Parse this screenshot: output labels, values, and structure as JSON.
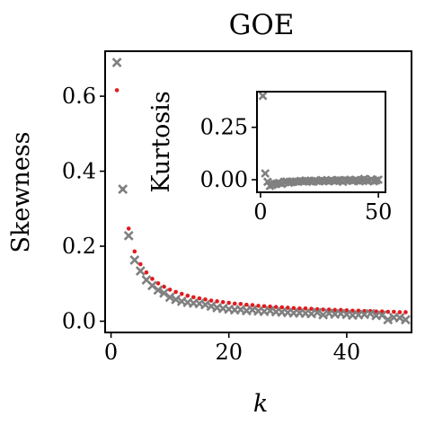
{
  "chart_data": [
    {
      "id": "main",
      "type": "scatter",
      "title": "GOE",
      "xlabel": "k",
      "ylabel": "Skewness",
      "xlim": [
        -1,
        51
      ],
      "ylim": [
        -0.03,
        0.72
      ],
      "xticks": [
        0,
        20,
        40
      ],
      "yticks": [
        0.0,
        0.2,
        0.4,
        0.6
      ],
      "xtick_labels": [
        "0",
        "20",
        "40"
      ],
      "ytick_labels": [
        "0.0",
        "0.2",
        "0.4",
        "0.6"
      ],
      "series": [
        {
          "marker": "dot",
          "color": "#e31a1c",
          "x": [
            1,
            2,
            3,
            4,
            5,
            6,
            7,
            8,
            9,
            10,
            11,
            12,
            13,
            14,
            15,
            16,
            17,
            18,
            19,
            20,
            21,
            22,
            23,
            24,
            25,
            26,
            27,
            28,
            29,
            30,
            31,
            32,
            33,
            34,
            35,
            36,
            37,
            38,
            39,
            40,
            41,
            42,
            43,
            44,
            45,
            46,
            47,
            48,
            49,
            50
          ],
          "y": [
            0.616,
            0.352,
            0.247,
            0.186,
            0.152,
            0.13,
            0.113,
            0.101,
            0.092,
            0.084,
            0.078,
            0.073,
            0.068,
            0.064,
            0.061,
            0.058,
            0.055,
            0.053,
            0.051,
            0.049,
            0.047,
            0.046,
            0.044,
            0.043,
            0.041,
            0.04,
            0.039,
            0.038,
            0.037,
            0.036,
            0.035,
            0.034,
            0.034,
            0.033,
            0.032,
            0.031,
            0.031,
            0.03,
            0.03,
            0.029,
            0.028,
            0.028,
            0.027,
            0.027,
            0.026,
            0.026,
            0.025,
            0.025,
            0.024,
            0.024
          ]
        },
        {
          "marker": "x",
          "color": "#808080",
          "x": [
            1,
            2,
            3,
            4,
            5,
            6,
            7,
            8,
            9,
            10,
            11,
            12,
            13,
            14,
            15,
            16,
            17,
            18,
            19,
            20,
            21,
            22,
            23,
            24,
            25,
            26,
            27,
            28,
            29,
            30,
            31,
            32,
            33,
            34,
            35,
            36,
            37,
            38,
            39,
            40,
            41,
            42,
            43,
            44,
            45,
            46,
            47,
            48,
            49,
            50
          ],
          "y": [
            0.69,
            0.352,
            0.228,
            0.163,
            0.134,
            0.11,
            0.095,
            0.083,
            0.075,
            0.064,
            0.058,
            0.053,
            0.05,
            0.048,
            0.047,
            0.044,
            0.04,
            0.036,
            0.034,
            0.032,
            0.03,
            0.031,
            0.028,
            0.03,
            0.027,
            0.026,
            0.028,
            0.025,
            0.024,
            0.023,
            0.022,
            0.022,
            0.021,
            0.02,
            0.023,
            0.017,
            0.021,
            0.019,
            0.02,
            0.018,
            0.016,
            0.017,
            0.018,
            0.02,
            0.015,
            0.016,
            0.004,
            0.01,
            0.009,
            0.004
          ]
        }
      ]
    },
    {
      "id": "inset",
      "type": "scatter",
      "title": "",
      "xlabel": "",
      "ylabel": "Kurtosis",
      "xlim": [
        -1.5,
        53
      ],
      "ylim": [
        -0.06,
        0.42
      ],
      "xticks": [
        0,
        50
      ],
      "yticks": [
        0.0,
        0.25
      ],
      "xtick_labels": [
        "0",
        "50"
      ],
      "ytick_labels": [
        "0.00",
        "0.25"
      ],
      "series": [
        {
          "marker": "x",
          "color": "#808080",
          "x": [
            1,
            2,
            3,
            4,
            5,
            6,
            7,
            8,
            9,
            10,
            11,
            12,
            13,
            14,
            15,
            16,
            17,
            18,
            19,
            20,
            21,
            22,
            23,
            24,
            25,
            26,
            27,
            28,
            29,
            30,
            31,
            32,
            33,
            34,
            35,
            36,
            37,
            38,
            39,
            40,
            41,
            42,
            43,
            44,
            45,
            46,
            47,
            48,
            49,
            50
          ],
          "y": [
            0.4,
            0.03,
            -0.01,
            -0.03,
            -0.025,
            -0.02,
            -0.018,
            -0.015,
            -0.02,
            -0.01,
            -0.008,
            -0.015,
            -0.012,
            -0.01,
            -0.008,
            -0.01,
            -0.006,
            -0.008,
            -0.004,
            -0.006,
            -0.008,
            -0.01,
            -0.004,
            -0.006,
            -0.008,
            -0.002,
            -0.006,
            -0.004,
            -0.008,
            -0.002,
            -0.006,
            -0.004,
            -0.002,
            -0.004,
            -0.01,
            -0.002,
            -0.004,
            0.0,
            -0.006,
            -0.002,
            -0.004,
            -0.008,
            -0.002,
            0.004,
            -0.004,
            -0.006,
            0.002,
            -0.008,
            -0.004,
            0.0
          ]
        }
      ]
    }
  ]
}
